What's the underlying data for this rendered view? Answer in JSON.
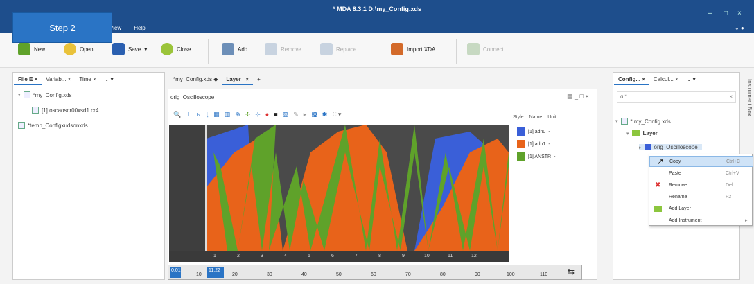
{
  "window": {
    "title": "* MDA 8.3.1  D:\\my_Config.xds",
    "menu": [
      "View",
      "Help"
    ]
  },
  "step_badge": "Step 2",
  "toolbar": {
    "new": "New",
    "open": "Open",
    "save": "Save",
    "close": "Close",
    "add": "Add",
    "remove": "Remove",
    "replace": "Replace",
    "import": "Import XDA",
    "connect": "Connect"
  },
  "left_panel": {
    "tabs": [
      "File E",
      "Variab...",
      "Time"
    ],
    "items": [
      "*my_Config.xds",
      "[1] oscaoscr00xsd1.cr4",
      "*temp_Configxudsonxds"
    ]
  },
  "center": {
    "tabs": [
      "*my_Config.xds",
      "Layer"
    ],
    "osc_title": "orig_Oscilloscope",
    "legend": {
      "header": [
        "Style",
        "Name",
        "Unit"
      ],
      "rows": [
        {
          "name": "[1] adn0",
          "unit": "-",
          "color": "#3a5fd8"
        },
        {
          "name": "[1] adn1",
          "unit": "-",
          "color": "#e8631a"
        },
        {
          "name": "[1] ANSTR",
          "unit": "-",
          "color": "#5fa22a"
        }
      ]
    },
    "x_ticks": [
      "1",
      "2",
      "3",
      "4",
      "5",
      "6",
      "7",
      "8",
      "9",
      "10",
      "11",
      "12"
    ],
    "ruler_labels": [
      "0.01",
      "10",
      "11.22",
      "20",
      "30",
      "40",
      "50",
      "60",
      "70",
      "80",
      "90",
      "100",
      "110"
    ]
  },
  "right_panel": {
    "tabs": [
      "Config...",
      "Calcul..."
    ],
    "search": "ɑ *",
    "tree": {
      "root": "* my_Config.xds",
      "layer": "Layer",
      "osc": "orig_Oscilloscope"
    },
    "side_label": "Instrument Box"
  },
  "context_menu": [
    {
      "label": "Copy",
      "shortcut": "Ctrl+C"
    },
    {
      "label": "Paste",
      "shortcut": "Ctrl+V"
    },
    {
      "label": "Remove",
      "shortcut": "Del"
    },
    {
      "label": "Rename",
      "shortcut": "F2"
    },
    {
      "label": "Add Layer",
      "shortcut": ""
    },
    {
      "label": "Add Instrument",
      "shortcut": "▸"
    }
  ]
}
